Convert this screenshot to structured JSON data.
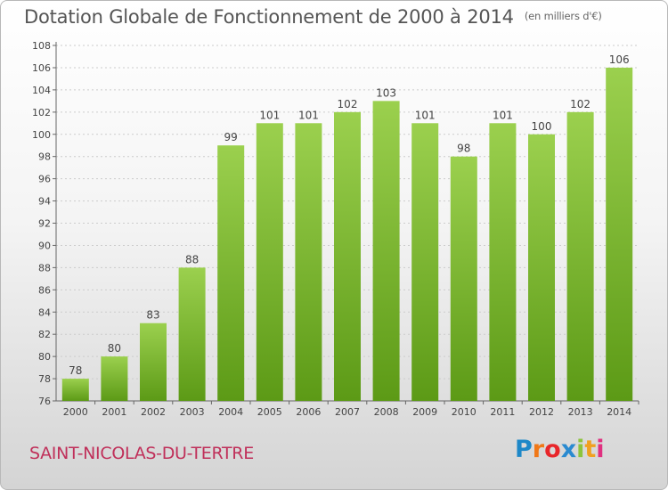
{
  "title": "Dotation Globale de Fonctionnement de 2000 à 2014",
  "unit": "(en milliers d'€)",
  "commune": "SAINT-NICOLAS-DU-TERTRE",
  "logo": {
    "text": "Proxiti",
    "letter_colors": [
      "#1e88c8",
      "#f07818",
      "#e8262a",
      "#2a8ad0",
      "#8cc43c",
      "#f0a020",
      "#e03080"
    ]
  },
  "colors": {
    "bar_top": "#9bd04e",
    "bar_bottom": "#5c9a16",
    "axis": "#666666",
    "grid": "#cccccc"
  },
  "chart_data": {
    "type": "bar",
    "categories": [
      "2000",
      "2001",
      "2002",
      "2003",
      "2004",
      "2005",
      "2006",
      "2007",
      "2008",
      "2009",
      "2010",
      "2011",
      "2012",
      "2013",
      "2014"
    ],
    "values": [
      78,
      80,
      83,
      88,
      99,
      101,
      101,
      102,
      103,
      101,
      98,
      101,
      100,
      102,
      106
    ],
    "title": "Dotation Globale de Fonctionnement de 2000 à 2014",
    "xlabel": "",
    "ylabel": "",
    "ylim": [
      76,
      108
    ],
    "yticks": [
      76,
      78,
      80,
      82,
      84,
      86,
      88,
      90,
      92,
      94,
      96,
      98,
      100,
      102,
      104,
      106,
      108
    ],
    "grid": true,
    "legend": "none",
    "data_labels": true
  }
}
